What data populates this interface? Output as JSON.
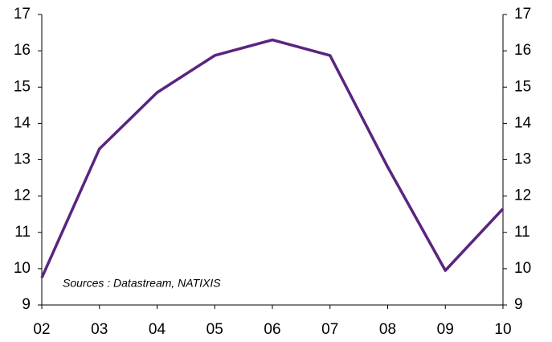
{
  "chart_data": {
    "type": "line",
    "annotation": "Sources : Datastream, NATIXIS",
    "categories": [
      "02",
      "03",
      "04",
      "05",
      "06",
      "07",
      "08",
      "09",
      "10"
    ],
    "series": [
      {
        "name": null,
        "color": "#5a2480",
        "values": [
          9.75,
          13.3,
          14.85,
          15.87,
          16.3,
          15.87,
          12.8,
          9.95,
          11.65
        ]
      }
    ],
    "ylim": [
      9,
      17
    ],
    "yticks": [
      9,
      10,
      11,
      12,
      13,
      14,
      15,
      16,
      17
    ],
    "y2lim": [
      9,
      17
    ],
    "y2ticks": [
      9,
      10,
      11,
      12,
      13,
      14,
      15,
      16,
      17
    ],
    "grid": false
  }
}
